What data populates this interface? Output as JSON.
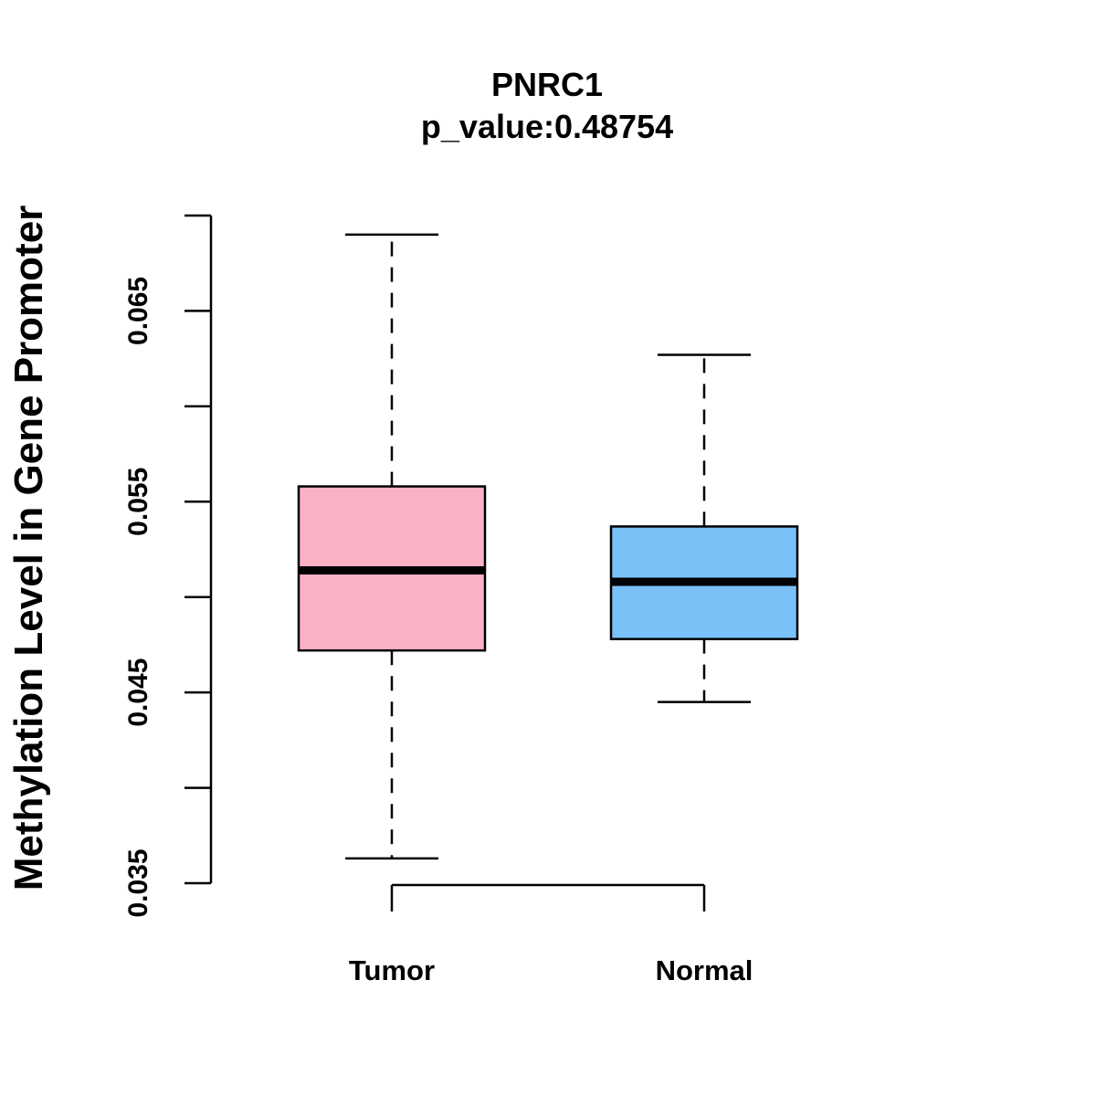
{
  "chart_data": {
    "type": "boxplot",
    "title": "PNRC1",
    "subtitle": "p_value:0.48754",
    "xlabel": "",
    "ylabel": "Methylation Level in Gene Promoter",
    "ylim": [
      0.035,
      0.07
    ],
    "yticks": [
      0.035,
      0.04,
      0.045,
      0.05,
      0.055,
      0.06,
      0.065,
      0.07
    ],
    "ytick_labels": [
      "0.035",
      "",
      "0.045",
      "",
      "0.055",
      "",
      "0.065",
      ""
    ],
    "categories": [
      "Tumor",
      "Normal"
    ],
    "boxes": [
      {
        "name": "Tumor",
        "color": "#FBB1C4",
        "whisker_low": 0.0363,
        "q1": 0.0472,
        "median": 0.0514,
        "q3": 0.0558,
        "whisker_high": 0.069
      },
      {
        "name": "Normal",
        "color": "#7AC1F8",
        "whisker_low": 0.0445,
        "q1": 0.0478,
        "median": 0.0508,
        "q3": 0.0537,
        "whisker_high": 0.0627
      }
    ],
    "grid": false,
    "legend": "none"
  }
}
